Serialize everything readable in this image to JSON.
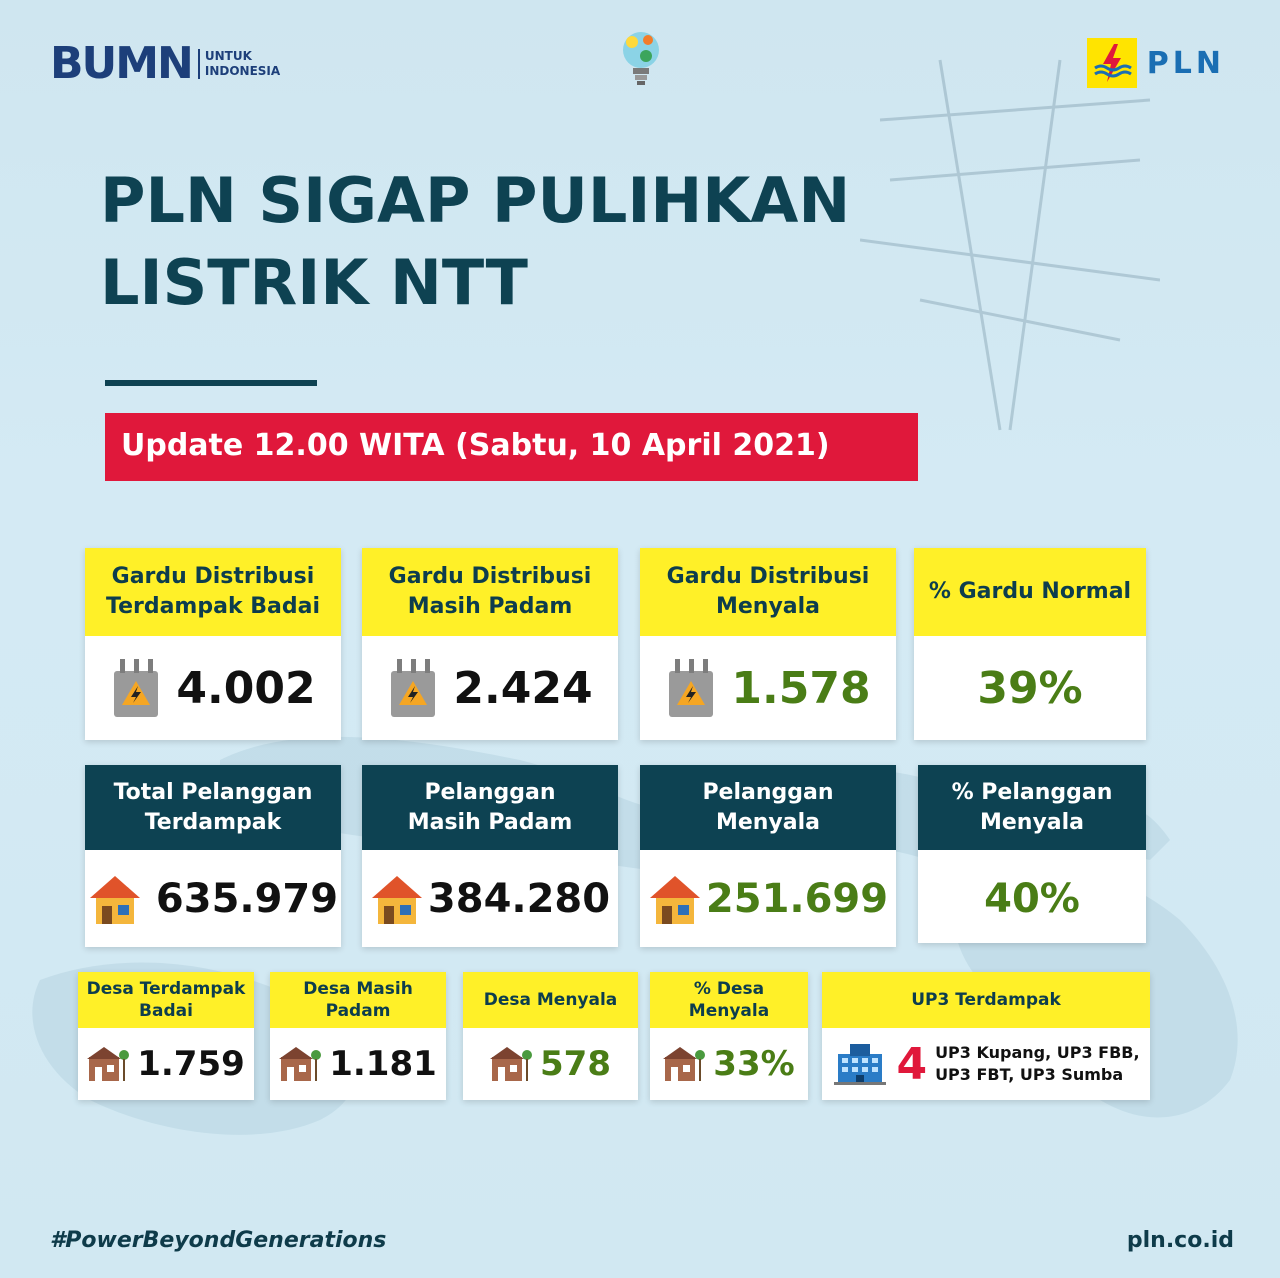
{
  "header": {
    "bumn_logo": "BUMN",
    "bumn_sub_1": "UNTUK",
    "bumn_sub_2": "INDONESIA",
    "pln_logo": "PLN"
  },
  "title_line1": "PLN SIGAP PULIHKAN",
  "title_line2": "LISTRIK NTT",
  "update": "Update 12.00 WITA (Sabtu, 10 April 2021)",
  "gardu": [
    {
      "label_1": "Gardu Distribusi",
      "label_2": "Terdampak Badai",
      "value": "4.002",
      "icon": "transformer-icon"
    },
    {
      "label_1": "Gardu Distribusi",
      "label_2": "Masih Padam",
      "value": "2.424",
      "icon": "transformer-icon"
    },
    {
      "label_1": "Gardu Distribusi",
      "label_2": "Menyala",
      "value": "1.578",
      "icon": "transformer-icon"
    },
    {
      "label_1": "% Gardu Normal",
      "label_2": "",
      "value": "39%"
    }
  ],
  "pelanggan": [
    {
      "label_1": "Total Pelanggan",
      "label_2": "Terdampak",
      "value": "635.979",
      "icon": "house-icon"
    },
    {
      "label_1": "Pelanggan",
      "label_2": "Masih Padam",
      "value": "384.280",
      "icon": "house-icon"
    },
    {
      "label_1": "Pelanggan",
      "label_2": "Menyala",
      "value": "251.699",
      "icon": "house-icon"
    },
    {
      "label_1": "% Pelanggan",
      "label_2": "Menyala",
      "value": "40%"
    }
  ],
  "desa": [
    {
      "label_1": "Desa Terdampak",
      "label_2": "Badai",
      "value": "1.759",
      "icon": "village-icon"
    },
    {
      "label_1": "Desa Masih",
      "label_2": "Padam",
      "value": "1.181",
      "icon": "village-icon"
    },
    {
      "label_1": "Desa Menyala",
      "label_2": "",
      "value": "578",
      "icon": "village-icon"
    },
    {
      "label_1": "% Desa",
      "label_2": "Menyala",
      "value": "33%",
      "icon": "village-icon"
    }
  ],
  "up3": {
    "label": "UP3 Terdampak",
    "value": "4",
    "list_1": "UP3 Kupang, UP3 FBB,",
    "list_2": "UP3 FBT, UP3 Sumba",
    "icon": "office-building-icon"
  },
  "footer": {
    "hashtag": "#PowerBeyondGenerations",
    "url": "pln.co.id"
  },
  "colors": {
    "accent_red": "#e0183b",
    "yellow": "#fff028",
    "dark_teal": "#0d4252",
    "green_value": "#4a7d16"
  }
}
